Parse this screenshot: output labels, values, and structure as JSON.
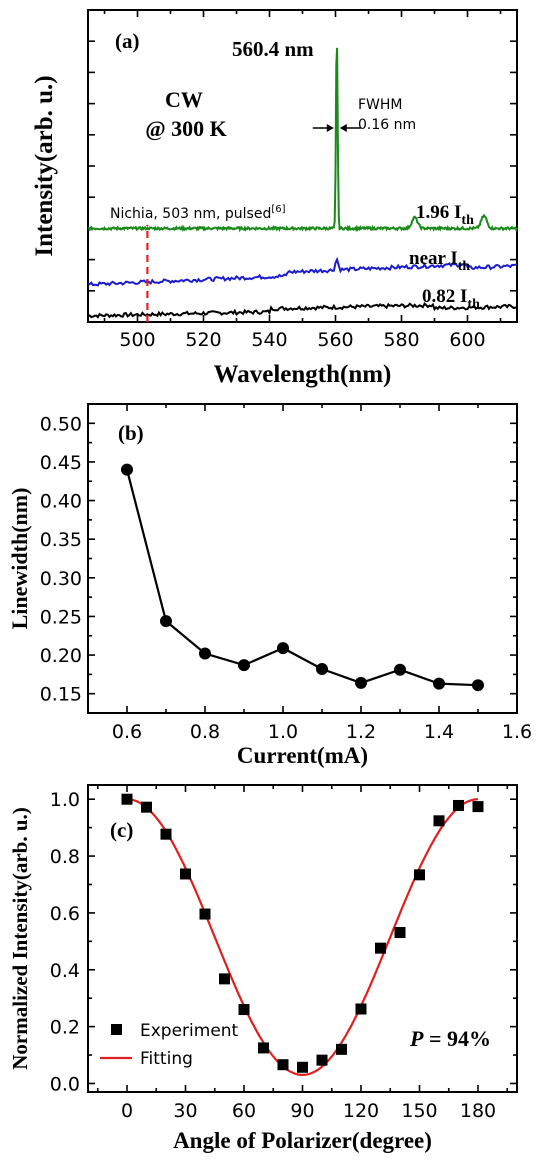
{
  "chart_data": [
    {
      "panel": "(a)",
      "type": "line",
      "xlabel": "Wavelength(nm)",
      "ylabel": "Intensity(arb. u.)",
      "xlim": [
        485,
        615
      ],
      "xticks": [
        500,
        520,
        540,
        560,
        580,
        600
      ],
      "yticks_labeled": false,
      "annotations": {
        "cw": "CW",
        "temp": "@ 300 K",
        "peak": "560.4 nm",
        "fwhm_title": "FWHM",
        "fwhm_value": "0.16 nm",
        "nichia": "Nichia, 503 nm, pulsed",
        "nichia_ref": "[6]",
        "nichia_wavelength": 503
      },
      "series": [
        {
          "name": "1.96 I",
          "sub": "th",
          "color": "#1a8a1a",
          "baseline": 0.3,
          "peak_center": 560.4,
          "peak_height": 0.93,
          "side_peaks": [
            {
              "x": 584,
              "h": 0.035
            },
            {
              "x": 605,
              "h": 0.04
            }
          ]
        },
        {
          "name": "near I",
          "sub": "th",
          "color": "#1c1ccc",
          "baseline_start": 0.12,
          "baseline_end": 0.18,
          "peak_center": 560.4,
          "peak_height": 0.035
        },
        {
          "name": "0.82 I",
          "sub": "th",
          "color": "#000000",
          "baseline_start": 0.02,
          "baseline_end": 0.05
        }
      ]
    },
    {
      "panel": "(b)",
      "type": "line",
      "xlabel": "Current(mA)",
      "ylabel": "Linewidth(nm)",
      "xlim": [
        0.5,
        1.6
      ],
      "ylim": [
        0.125,
        0.525
      ],
      "xticks": [
        "0.6",
        "0.8",
        "1.0",
        "1.2",
        "1.4",
        "1.6"
      ],
      "yticks": [
        "0.15",
        "0.20",
        "0.25",
        "0.30",
        "0.35",
        "0.40",
        "0.45",
        "0.50"
      ],
      "x": [
        0.6,
        0.7,
        0.8,
        0.9,
        1.0,
        1.1,
        1.2,
        1.3,
        1.4,
        1.5
      ],
      "y": [
        0.44,
        0.244,
        0.202,
        0.187,
        0.209,
        0.182,
        0.164,
        0.181,
        0.163,
        0.161
      ]
    },
    {
      "panel": "(c)",
      "type": "scatter",
      "xlabel": "Angle of Polarizer(degree)",
      "ylabel": "Normalized Intensity(arb. u.)",
      "xlim": [
        -20,
        200
      ],
      "ylim": [
        -0.03,
        1.05
      ],
      "xticks": [
        "0",
        "30",
        "60",
        "90",
        "120",
        "150",
        "180"
      ],
      "yticks": [
        "0.0",
        "0.2",
        "0.4",
        "0.6",
        "0.8",
        "1.0"
      ],
      "annotation_p": "P",
      "annotation_val": " = 94%",
      "legend": [
        "Experiment",
        "Fitting"
      ],
      "legend_placement": "bottom-left",
      "experiment": {
        "x": [
          0,
          10,
          20,
          30,
          40,
          50,
          60,
          70,
          80,
          90,
          100,
          110,
          120,
          130,
          140,
          150,
          160,
          170,
          180
        ],
        "y": [
          1.0,
          0.972,
          0.877,
          0.737,
          0.596,
          0.368,
          0.26,
          0.125,
          0.066,
          0.057,
          0.082,
          0.12,
          0.262,
          0.476,
          0.531,
          0.734,
          0.924,
          0.978,
          0.974
        ]
      },
      "fitting": {
        "max": 1.0,
        "min": 0.03,
        "color": "#e02020"
      }
    }
  ]
}
